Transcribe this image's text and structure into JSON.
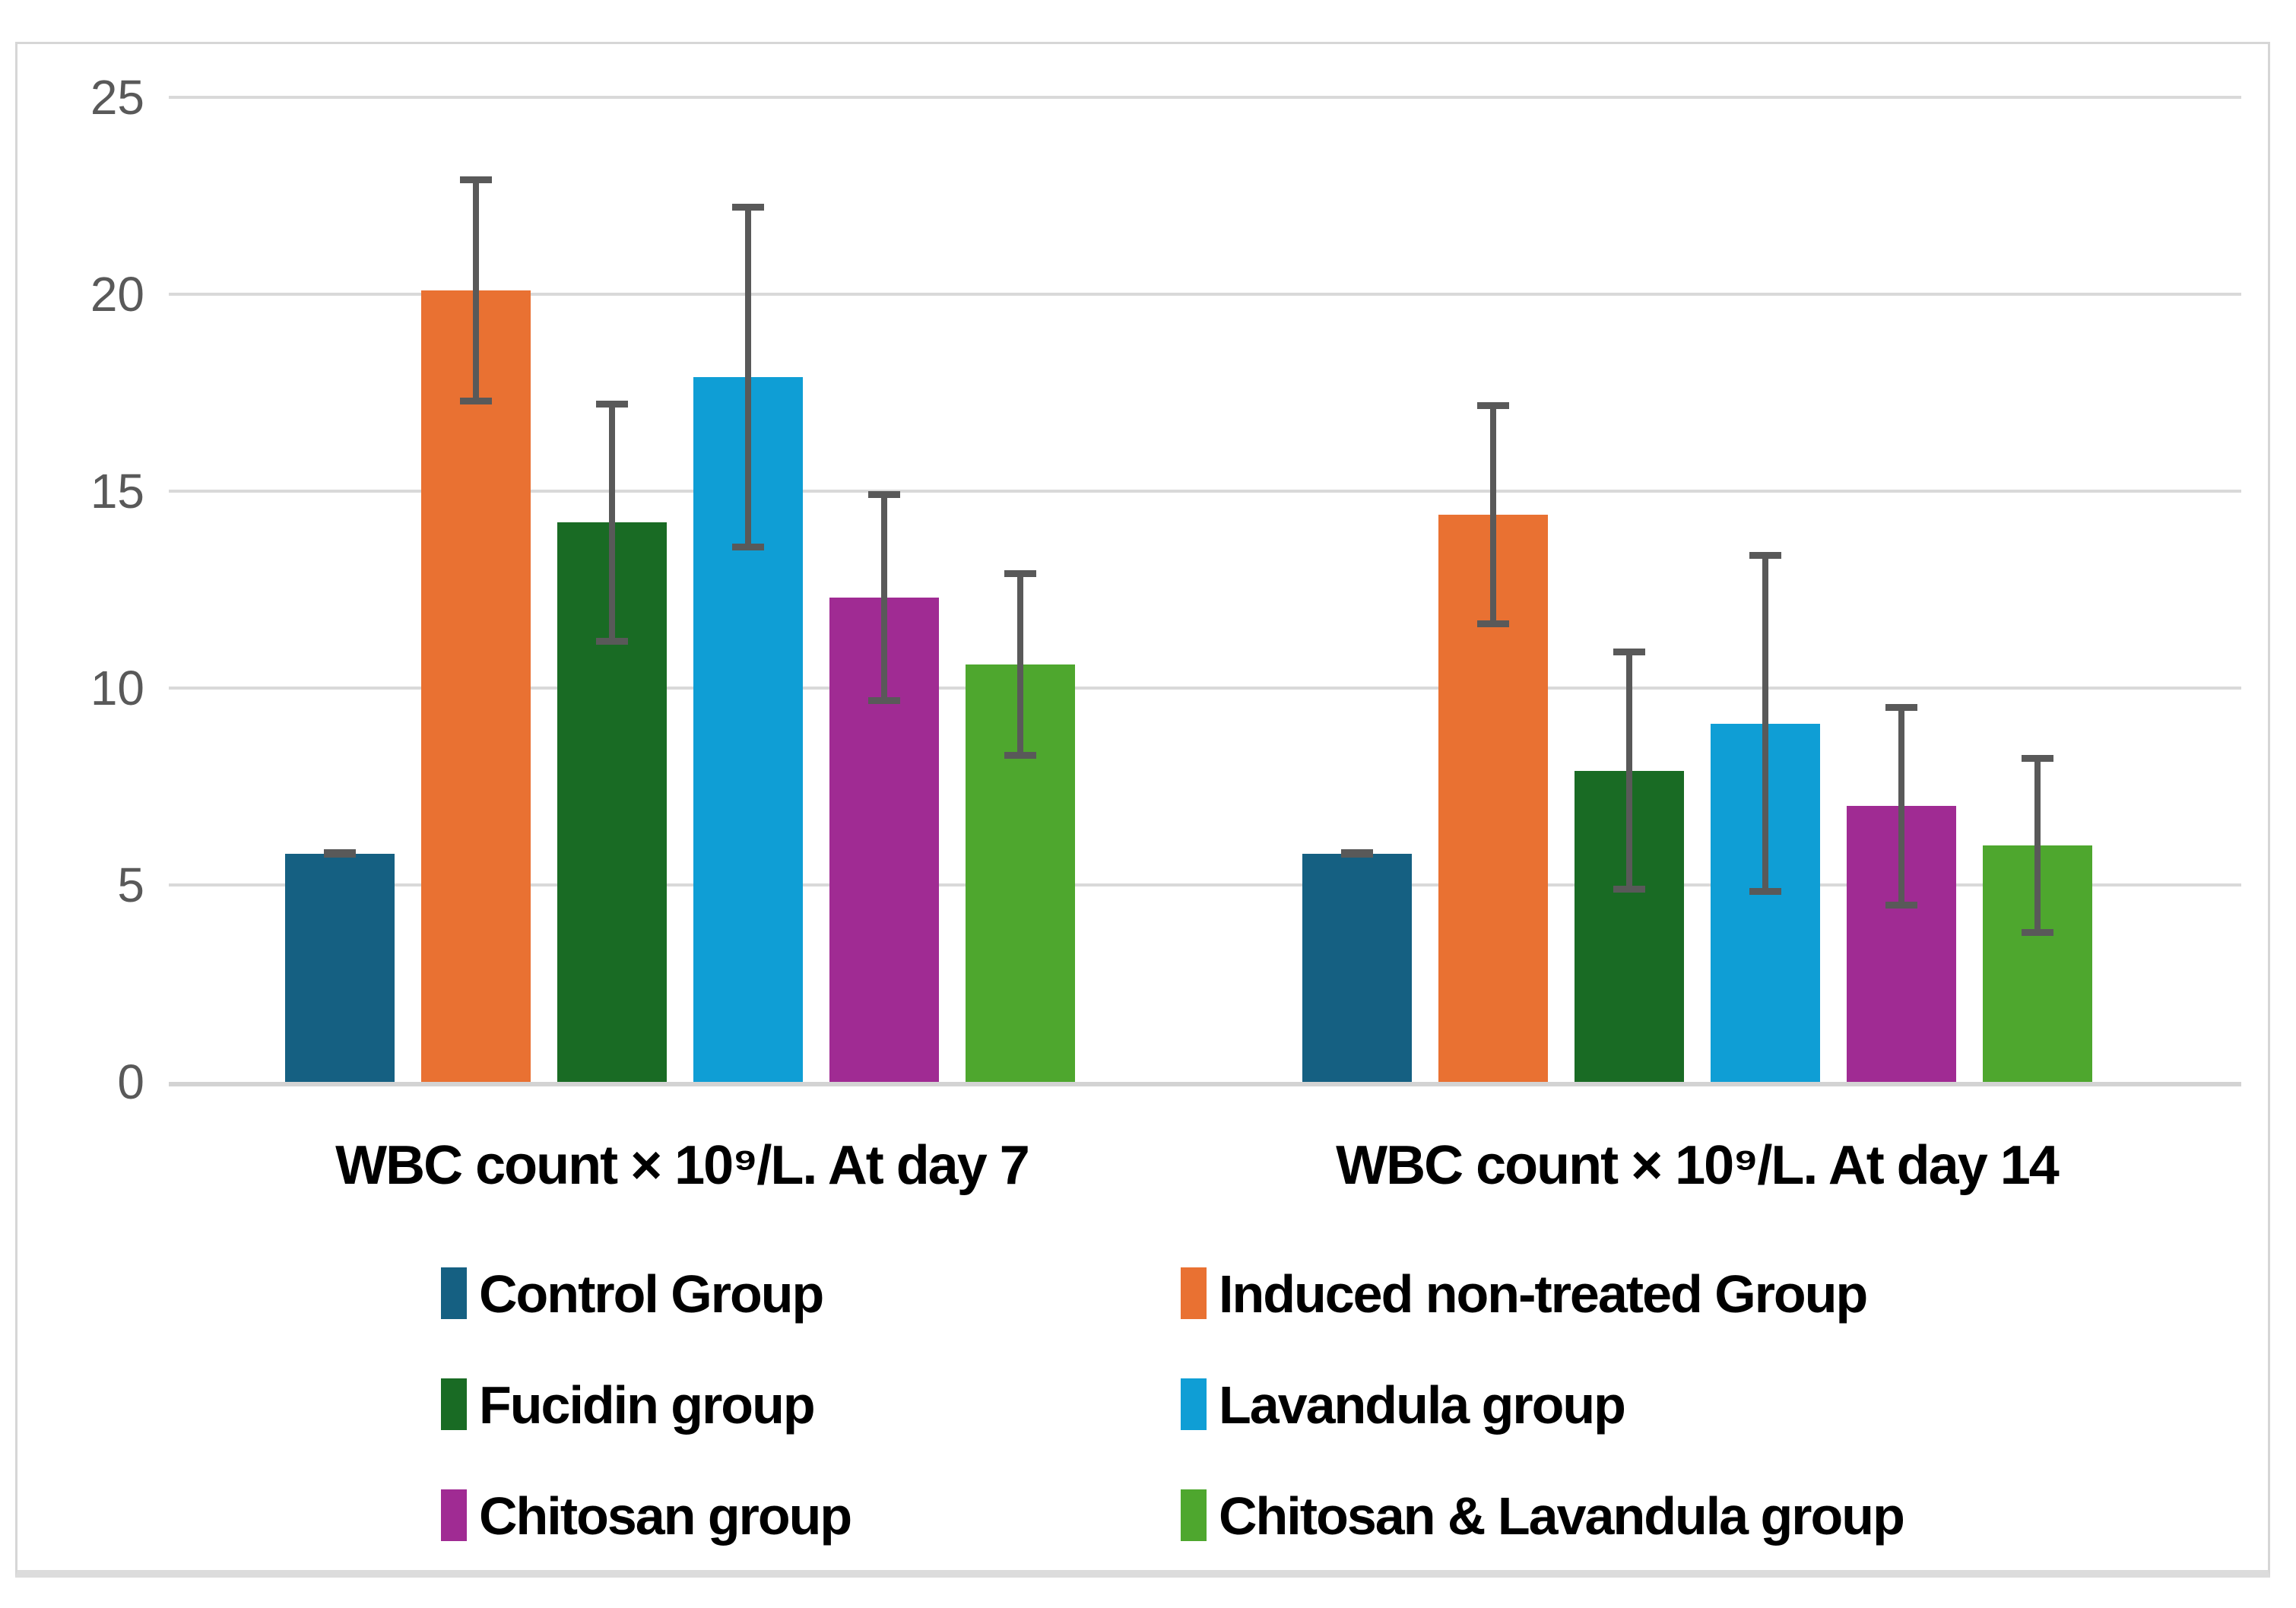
{
  "chart_data": {
    "type": "bar",
    "title": "",
    "categories": [
      "WBC count × 10⁹/L. At day 7",
      "WBC count × 10⁹/L. At day 14"
    ],
    "series": [
      {
        "name": "Control Group",
        "color": "#156082",
        "values": [
          5.8,
          5.8
        ],
        "errors": [
          0.1,
          0.1
        ]
      },
      {
        "name": "Induced non-treated Group",
        "color": "#E97132",
        "values": [
          20.1,
          14.4
        ],
        "errors": [
          2.9,
          2.85
        ]
      },
      {
        "name": "Fucidin group",
        "color": "#196B24",
        "values": [
          14.2,
          7.9
        ],
        "errors": [
          3.1,
          3.1
        ]
      },
      {
        "name": "Lavandula group",
        "color": "#0F9ED5",
        "values": [
          17.9,
          9.1
        ],
        "errors": [
          4.4,
          4.35
        ]
      },
      {
        "name": "Chitosan group",
        "color": "#A02B93",
        "values": [
          12.3,
          7.0
        ],
        "errors": [
          2.7,
          2.6
        ]
      },
      {
        "name": "Chitosan & Lavandula group",
        "color": "#4EA72E",
        "values": [
          10.6,
          6.0
        ],
        "errors": [
          2.4,
          2.3
        ]
      }
    ],
    "y_axis": {
      "min": 0,
      "max": 25,
      "tick_step": 5,
      "ticks": [
        0,
        5,
        10,
        15,
        20,
        25
      ]
    },
    "grid": true,
    "legend_position": "bottom",
    "colors": {
      "error_bar": "#595959",
      "gridline": "#D9D9D9",
      "axis_line": "#D3D3D3",
      "tick_label": "#595959",
      "category_label": "#000000",
      "frame_border": "#D6D6D6"
    }
  }
}
